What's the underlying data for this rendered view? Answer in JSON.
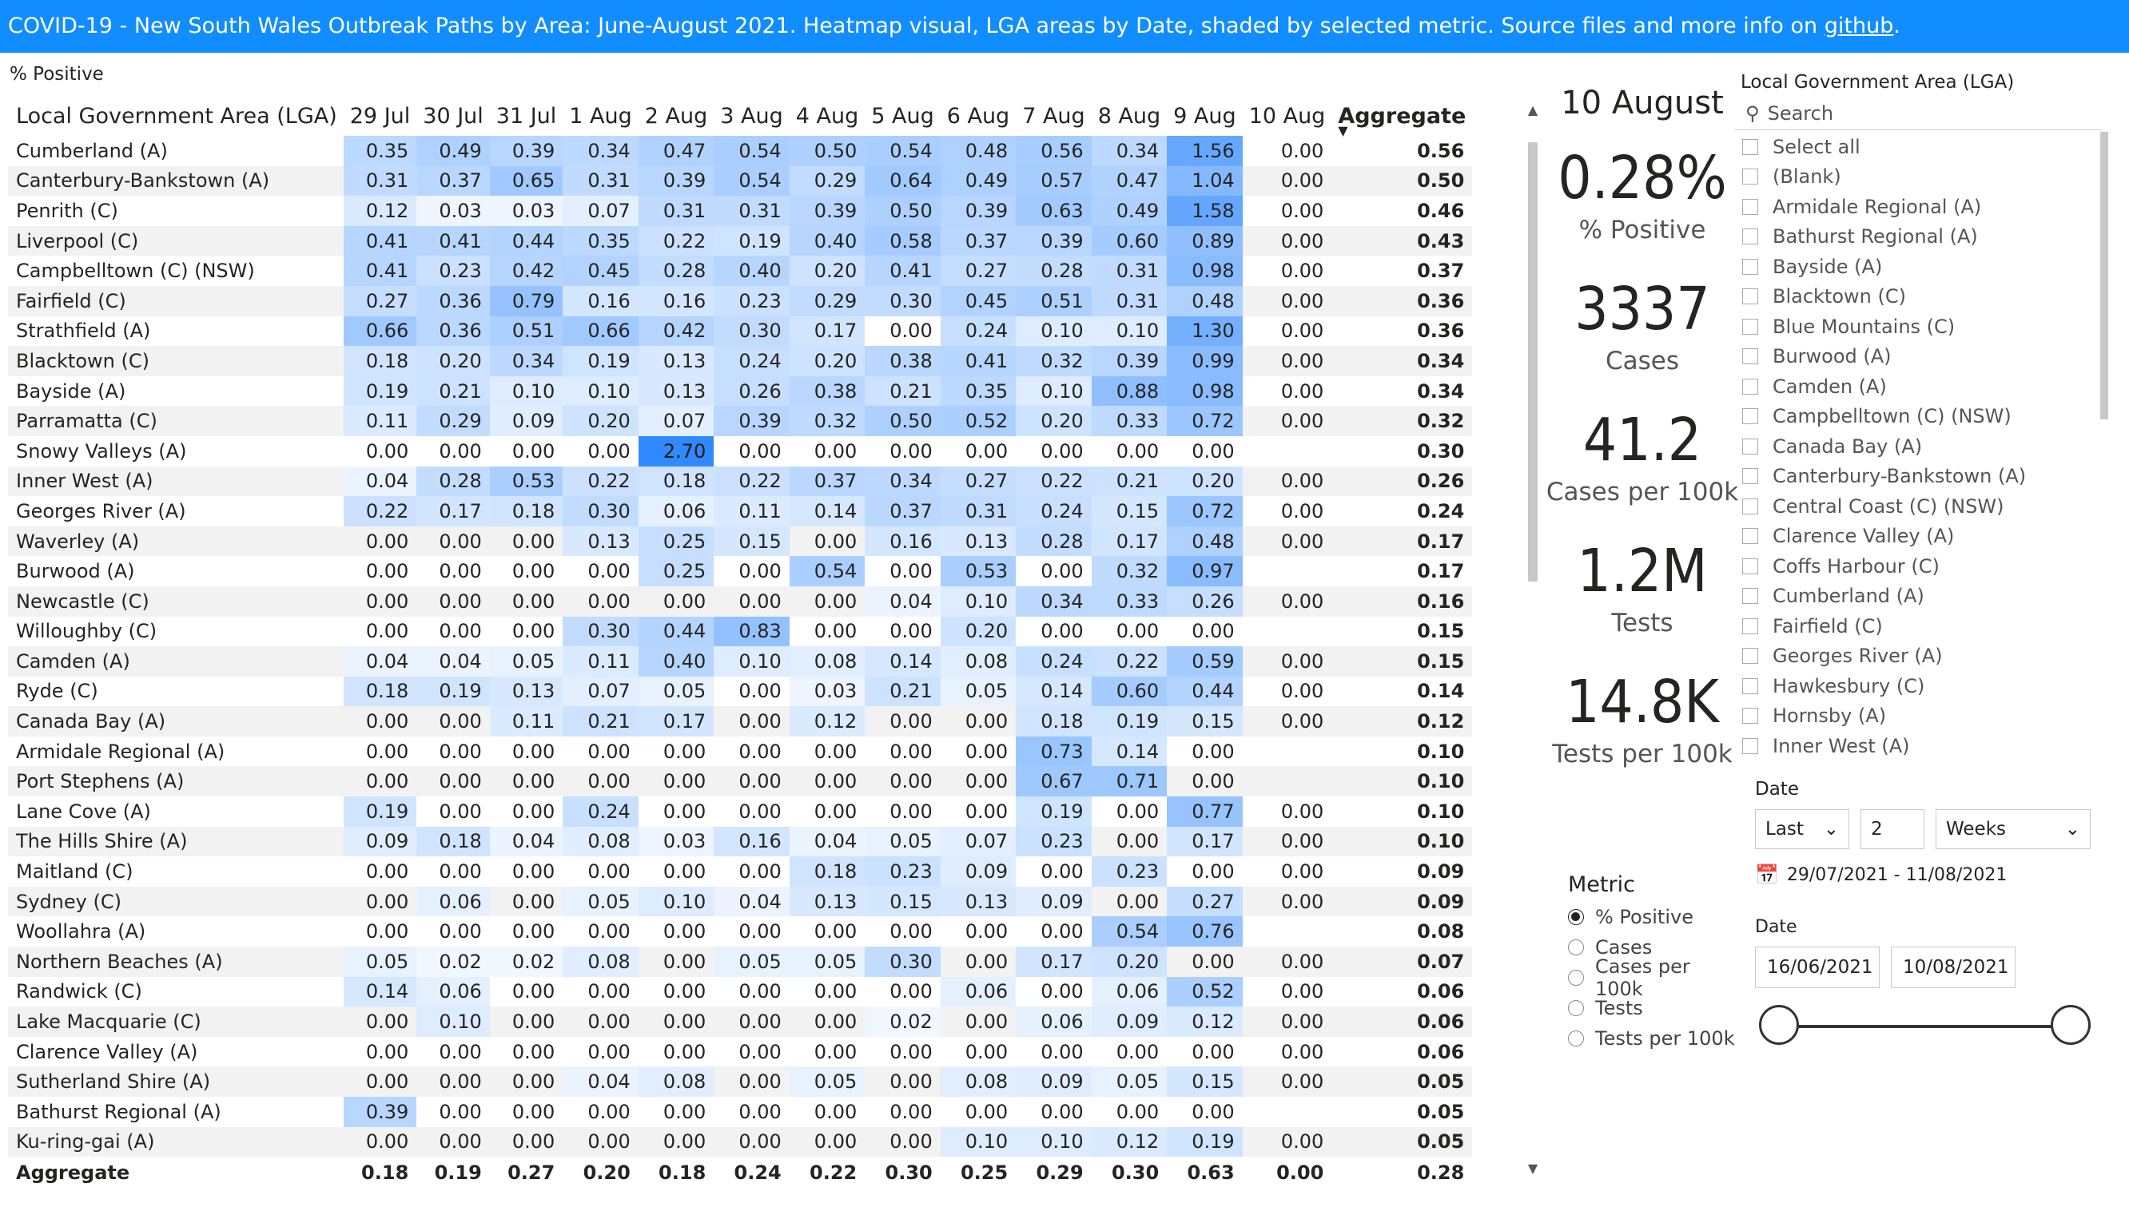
{
  "header": {
    "title_text": "COVID-19  - New South Wales Outbreak Paths by Area: June-August 2021.  Heatmap visual, LGA areas by Date, shaded by selected metric. Source files and more info on ",
    "title_link": "github",
    "title_end": "."
  },
  "table": {
    "subtitle": "% Positive",
    "lga_header": "Local Government Area (LGA)",
    "dates": [
      "29 Jul",
      "30 Jul",
      "31 Jul",
      "1 Aug",
      "2 Aug",
      "3 Aug",
      "4 Aug",
      "5 Aug",
      "6 Aug",
      "7 Aug",
      "8 Aug",
      "9 Aug",
      "10 Aug"
    ],
    "aggregate_header": "Aggregate",
    "sort_indicator": "▼",
    "colors": {
      "max": "#1E7FFF",
      "min": "#ffffff",
      "band": "#f2f2f2"
    },
    "rows": [
      {
        "lga": "Cumberland (A)",
        "v": [
          "0.35",
          "0.49",
          "0.39",
          "0.34",
          "0.47",
          "0.54",
          "0.50",
          "0.54",
          "0.48",
          "0.56",
          "0.34",
          "1.56",
          "0.00"
        ],
        "agg": "0.56"
      },
      {
        "lga": "Canterbury-Bankstown (A)",
        "v": [
          "0.31",
          "0.37",
          "0.65",
          "0.31",
          "0.39",
          "0.54",
          "0.29",
          "0.64",
          "0.49",
          "0.57",
          "0.47",
          "1.04",
          "0.00"
        ],
        "agg": "0.50"
      },
      {
        "lga": "Penrith (C)",
        "v": [
          "0.12",
          "0.03",
          "0.03",
          "0.07",
          "0.31",
          "0.31",
          "0.39",
          "0.50",
          "0.39",
          "0.63",
          "0.49",
          "1.58",
          "0.00"
        ],
        "agg": "0.46"
      },
      {
        "lga": "Liverpool (C)",
        "v": [
          "0.41",
          "0.41",
          "0.44",
          "0.35",
          "0.22",
          "0.19",
          "0.40",
          "0.58",
          "0.37",
          "0.39",
          "0.60",
          "0.89",
          "0.00"
        ],
        "agg": "0.43"
      },
      {
        "lga": "Campbelltown (C) (NSW)",
        "v": [
          "0.41",
          "0.23",
          "0.42",
          "0.45",
          "0.28",
          "0.40",
          "0.20",
          "0.41",
          "0.27",
          "0.28",
          "0.31",
          "0.98",
          "0.00"
        ],
        "agg": "0.37"
      },
      {
        "lga": "Fairfield (C)",
        "v": [
          "0.27",
          "0.36",
          "0.79",
          "0.16",
          "0.16",
          "0.23",
          "0.29",
          "0.30",
          "0.45",
          "0.51",
          "0.31",
          "0.48",
          "0.00"
        ],
        "agg": "0.36"
      },
      {
        "lga": "Strathfield (A)",
        "v": [
          "0.66",
          "0.36",
          "0.51",
          "0.66",
          "0.42",
          "0.30",
          "0.17",
          "0.00",
          "0.24",
          "0.10",
          "0.10",
          "1.30",
          "0.00"
        ],
        "agg": "0.36"
      },
      {
        "lga": "Blacktown (C)",
        "v": [
          "0.18",
          "0.20",
          "0.34",
          "0.19",
          "0.13",
          "0.24",
          "0.20",
          "0.38",
          "0.41",
          "0.32",
          "0.39",
          "0.99",
          "0.00"
        ],
        "agg": "0.34"
      },
      {
        "lga": "Bayside (A)",
        "v": [
          "0.19",
          "0.21",
          "0.10",
          "0.10",
          "0.13",
          "0.26",
          "0.38",
          "0.21",
          "0.35",
          "0.10",
          "0.88",
          "0.98",
          "0.00"
        ],
        "agg": "0.34"
      },
      {
        "lga": "Parramatta (C)",
        "v": [
          "0.11",
          "0.29",
          "0.09",
          "0.20",
          "0.07",
          "0.39",
          "0.32",
          "0.50",
          "0.52",
          "0.20",
          "0.33",
          "0.72",
          "0.00"
        ],
        "agg": "0.32"
      },
      {
        "lga": "Snowy Valleys (A)",
        "v": [
          "0.00",
          "0.00",
          "0.00",
          "0.00",
          "2.70",
          "0.00",
          "0.00",
          "0.00",
          "0.00",
          "0.00",
          "0.00",
          "0.00",
          ""
        ],
        "agg": "0.30"
      },
      {
        "lga": "Inner West (A)",
        "v": [
          "0.04",
          "0.28",
          "0.53",
          "0.22",
          "0.18",
          "0.22",
          "0.37",
          "0.34",
          "0.27",
          "0.22",
          "0.21",
          "0.20",
          "0.00"
        ],
        "agg": "0.26"
      },
      {
        "lga": "Georges River (A)",
        "v": [
          "0.22",
          "0.17",
          "0.18",
          "0.30",
          "0.06",
          "0.11",
          "0.14",
          "0.37",
          "0.31",
          "0.24",
          "0.15",
          "0.72",
          "0.00"
        ],
        "agg": "0.24"
      },
      {
        "lga": "Waverley (A)",
        "v": [
          "0.00",
          "0.00",
          "0.00",
          "0.13",
          "0.25",
          "0.15",
          "0.00",
          "0.16",
          "0.13",
          "0.28",
          "0.17",
          "0.48",
          "0.00"
        ],
        "agg": "0.17"
      },
      {
        "lga": "Burwood (A)",
        "v": [
          "0.00",
          "0.00",
          "0.00",
          "0.00",
          "0.25",
          "0.00",
          "0.54",
          "0.00",
          "0.53",
          "0.00",
          "0.32",
          "0.97",
          ""
        ],
        "agg": "0.17"
      },
      {
        "lga": "Newcastle (C)",
        "v": [
          "0.00",
          "0.00",
          "0.00",
          "0.00",
          "0.00",
          "0.00",
          "0.00",
          "0.04",
          "0.10",
          "0.34",
          "0.33",
          "0.26",
          "0.00"
        ],
        "agg": "0.16"
      },
      {
        "lga": "Willoughby (C)",
        "v": [
          "0.00",
          "0.00",
          "0.00",
          "0.30",
          "0.44",
          "0.83",
          "0.00",
          "0.00",
          "0.20",
          "0.00",
          "0.00",
          "0.00",
          ""
        ],
        "agg": "0.15"
      },
      {
        "lga": "Camden (A)",
        "v": [
          "0.04",
          "0.04",
          "0.05",
          "0.11",
          "0.40",
          "0.10",
          "0.08",
          "0.14",
          "0.08",
          "0.24",
          "0.22",
          "0.59",
          "0.00"
        ],
        "agg": "0.15"
      },
      {
        "lga": "Ryde (C)",
        "v": [
          "0.18",
          "0.19",
          "0.13",
          "0.07",
          "0.05",
          "0.00",
          "0.03",
          "0.21",
          "0.05",
          "0.14",
          "0.60",
          "0.44",
          "0.00"
        ],
        "agg": "0.14"
      },
      {
        "lga": "Canada Bay (A)",
        "v": [
          "0.00",
          "0.00",
          "0.11",
          "0.21",
          "0.17",
          "0.00",
          "0.12",
          "0.00",
          "0.00",
          "0.18",
          "0.19",
          "0.15",
          "0.00"
        ],
        "agg": "0.12"
      },
      {
        "lga": "Armidale Regional (A)",
        "v": [
          "0.00",
          "0.00",
          "0.00",
          "0.00",
          "0.00",
          "0.00",
          "0.00",
          "0.00",
          "0.00",
          "0.73",
          "0.14",
          "0.00",
          ""
        ],
        "agg": "0.10"
      },
      {
        "lga": "Port Stephens (A)",
        "v": [
          "0.00",
          "0.00",
          "0.00",
          "0.00",
          "0.00",
          "0.00",
          "0.00",
          "0.00",
          "0.00",
          "0.67",
          "0.71",
          "0.00",
          ""
        ],
        "agg": "0.10"
      },
      {
        "lga": "Lane Cove (A)",
        "v": [
          "0.19",
          "0.00",
          "0.00",
          "0.24",
          "0.00",
          "0.00",
          "0.00",
          "0.00",
          "0.00",
          "0.19",
          "0.00",
          "0.77",
          "0.00"
        ],
        "agg": "0.10"
      },
      {
        "lga": "The Hills Shire (A)",
        "v": [
          "0.09",
          "0.18",
          "0.04",
          "0.08",
          "0.03",
          "0.16",
          "0.04",
          "0.05",
          "0.07",
          "0.23",
          "0.00",
          "0.17",
          "0.00"
        ],
        "agg": "0.10"
      },
      {
        "lga": "Maitland (C)",
        "v": [
          "0.00",
          "0.00",
          "0.00",
          "0.00",
          "0.00",
          "0.00",
          "0.18",
          "0.23",
          "0.09",
          "0.00",
          "0.23",
          "0.00",
          "0.00"
        ],
        "agg": "0.09"
      },
      {
        "lga": "Sydney (C)",
        "v": [
          "0.00",
          "0.06",
          "0.00",
          "0.05",
          "0.10",
          "0.04",
          "0.13",
          "0.15",
          "0.13",
          "0.09",
          "0.00",
          "0.27",
          "0.00"
        ],
        "agg": "0.09"
      },
      {
        "lga": "Woollahra (A)",
        "v": [
          "0.00",
          "0.00",
          "0.00",
          "0.00",
          "0.00",
          "0.00",
          "0.00",
          "0.00",
          "0.00",
          "0.00",
          "0.54",
          "0.76",
          ""
        ],
        "agg": "0.08"
      },
      {
        "lga": "Northern Beaches (A)",
        "v": [
          "0.05",
          "0.02",
          "0.02",
          "0.08",
          "0.00",
          "0.05",
          "0.05",
          "0.30",
          "0.00",
          "0.17",
          "0.20",
          "0.00",
          "0.00"
        ],
        "agg": "0.07"
      },
      {
        "lga": "Randwick (C)",
        "v": [
          "0.14",
          "0.06",
          "0.00",
          "0.00",
          "0.00",
          "0.00",
          "0.00",
          "0.00",
          "0.06",
          "0.00",
          "0.06",
          "0.52",
          "0.00"
        ],
        "agg": "0.06"
      },
      {
        "lga": "Lake Macquarie (C)",
        "v": [
          "0.00",
          "0.10",
          "0.00",
          "0.00",
          "0.00",
          "0.00",
          "0.00",
          "0.02",
          "0.00",
          "0.06",
          "0.09",
          "0.12",
          "0.00"
        ],
        "agg": "0.06"
      },
      {
        "lga": "Clarence Valley (A)",
        "v": [
          "0.00",
          "0.00",
          "0.00",
          "0.00",
          "0.00",
          "0.00",
          "0.00",
          "0.00",
          "0.00",
          "0.00",
          "0.00",
          "0.00",
          "0.00"
        ],
        "agg": "0.06"
      },
      {
        "lga": "Sutherland Shire (A)",
        "v": [
          "0.00",
          "0.00",
          "0.00",
          "0.04",
          "0.08",
          "0.00",
          "0.05",
          "0.00",
          "0.08",
          "0.09",
          "0.05",
          "0.15",
          "0.00"
        ],
        "agg": "0.05"
      },
      {
        "lga": "Bathurst Regional (A)",
        "v": [
          "0.39",
          "0.00",
          "0.00",
          "0.00",
          "0.00",
          "0.00",
          "0.00",
          "0.00",
          "0.00",
          "0.00",
          "0.00",
          "0.00",
          ""
        ],
        "agg": "0.05"
      },
      {
        "lga": "Ku-ring-gai (A)",
        "v": [
          "0.00",
          "0.00",
          "0.00",
          "0.00",
          "0.00",
          "0.00",
          "0.00",
          "0.00",
          "0.10",
          "0.10",
          "0.12",
          "0.19",
          "0.00"
        ],
        "agg": "0.05"
      }
    ],
    "totals": {
      "lga": "Aggregate",
      "v": [
        "0.18",
        "0.19",
        "0.27",
        "0.20",
        "0.18",
        "0.24",
        "0.22",
        "0.30",
        "0.25",
        "0.29",
        "0.30",
        "0.63",
        "0.00"
      ],
      "agg": "0.28"
    }
  },
  "cards": {
    "date": "10 August",
    "items": [
      {
        "value": "0.28%",
        "label": "% Positive"
      },
      {
        "value": "3337",
        "label": "Cases"
      },
      {
        "value": "41.2",
        "label": "Cases per 100k"
      },
      {
        "value": "1.2M",
        "label": "Tests"
      },
      {
        "value": "14.8K",
        "label": "Tests per 100k"
      }
    ]
  },
  "metric": {
    "title": "Metric",
    "options": [
      "% Positive",
      "Cases",
      "Cases per 100k",
      "Tests",
      "Tests per 100k"
    ],
    "selected": "% Positive"
  },
  "lga_slicer": {
    "title": "Local Government Area (LGA)",
    "search_placeholder": "Search",
    "items": [
      "Select all",
      "(Blank)",
      "Armidale Regional (A)",
      "Bathurst Regional (A)",
      "Bayside (A)",
      "Blacktown (C)",
      "Blue Mountains (C)",
      "Burwood (A)",
      "Camden (A)",
      "Campbelltown (C) (NSW)",
      "Canada Bay (A)",
      "Canterbury-Bankstown (A)",
      "Central Coast (C) (NSW)",
      "Clarence Valley (A)",
      "Coffs Harbour (C)",
      "Cumberland (A)",
      "Fairfield (C)",
      "Georges River (A)",
      "Hawkesbury (C)",
      "Hornsby (A)",
      "Inner West (A)"
    ]
  },
  "date_relative": {
    "title": "Date",
    "mode": "Last",
    "count": "2",
    "unit": "Weeks",
    "range_text": "29/07/2021 - 11/08/2021"
  },
  "date_between": {
    "title": "Date",
    "start": "16/06/2021",
    "end": "10/08/2021"
  }
}
